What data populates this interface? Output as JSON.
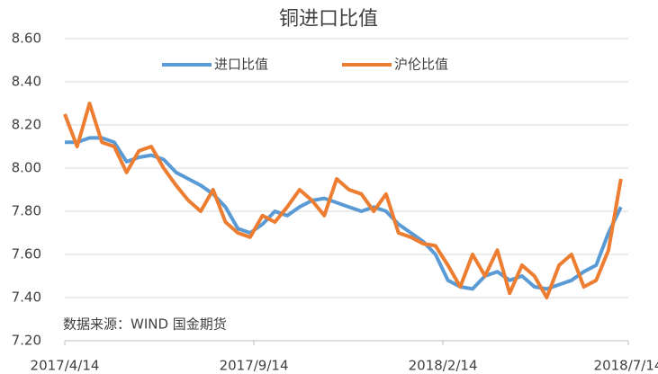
{
  "chart_data": {
    "type": "line",
    "title": "铜进口比值",
    "annotation": "数据来源：WIND 国金期货",
    "x": [
      "2017/4/14",
      "2017/4/24",
      "2017/5/4",
      "2017/5/14",
      "2017/5/24",
      "2017/6/3",
      "2017/6/13",
      "2017/6/23",
      "2017/7/3",
      "2017/7/13",
      "2017/7/23",
      "2017/8/2",
      "2017/8/12",
      "2017/8/22",
      "2017/9/1",
      "2017/9/11",
      "2017/9/21",
      "2017/10/1",
      "2017/10/11",
      "2017/10/21",
      "2017/10/31",
      "2017/11/10",
      "2017/11/20",
      "2017/11/30",
      "2017/12/10",
      "2017/12/20",
      "2017/12/30",
      "2018/1/9",
      "2018/1/19",
      "2018/1/29",
      "2018/2/8",
      "2018/2/18",
      "2018/2/28",
      "2018/3/10",
      "2018/3/20",
      "2018/3/30",
      "2018/4/9",
      "2018/4/19",
      "2018/4/29",
      "2018/5/9",
      "2018/5/19",
      "2018/5/29",
      "2018/6/8",
      "2018/6/18",
      "2018/6/28",
      "2018/7/8"
    ],
    "series": [
      {
        "name": "进口比值",
        "color": "#5b9bd5",
        "values": [
          8.12,
          8.12,
          8.14,
          8.14,
          8.12,
          8.03,
          8.05,
          8.06,
          8.04,
          7.98,
          7.95,
          7.92,
          7.88,
          7.82,
          7.72,
          7.7,
          7.74,
          7.8,
          7.78,
          7.82,
          7.85,
          7.86,
          7.84,
          7.82,
          7.8,
          7.82,
          7.8,
          7.74,
          7.7,
          7.66,
          7.6,
          7.48,
          7.45,
          7.44,
          7.5,
          7.52,
          7.48,
          7.5,
          7.45,
          7.44,
          7.46,
          7.48,
          7.52,
          7.55,
          7.7,
          7.82
        ]
      },
      {
        "name": "沪伦比值",
        "color": "#ed7d31",
        "values": [
          8.25,
          8.1,
          8.3,
          8.12,
          8.1,
          7.98,
          8.08,
          8.1,
          8.0,
          7.92,
          7.85,
          7.8,
          7.9,
          7.75,
          7.7,
          7.68,
          7.78,
          7.75,
          7.82,
          7.9,
          7.85,
          7.78,
          7.95,
          7.9,
          7.88,
          7.8,
          7.88,
          7.7,
          7.68,
          7.65,
          7.64,
          7.55,
          7.45,
          7.6,
          7.5,
          7.62,
          7.42,
          7.55,
          7.5,
          7.4,
          7.55,
          7.6,
          7.45,
          7.48,
          7.62,
          7.95
        ]
      }
    ],
    "xlim": [
      "2017/4/14",
      "2018/7/14"
    ],
    "xticks": [
      "2017/4/14",
      "2017/9/14",
      "2018/2/14",
      "2018/7/14"
    ],
    "ylim": [
      7.2,
      8.6
    ],
    "yticks": [
      {
        "value": 7.2,
        "label": "7.20"
      },
      {
        "value": 7.4,
        "label": "7.40"
      },
      {
        "value": 7.6,
        "label": "7.60"
      },
      {
        "value": 7.8,
        "label": "7.80"
      },
      {
        "value": 8.0,
        "label": "8.00"
      },
      {
        "value": 8.2,
        "label": "8.20"
      },
      {
        "value": 8.4,
        "label": "8.40"
      },
      {
        "value": 8.6,
        "label": "8.60"
      }
    ],
    "grid": true,
    "legend": "top"
  }
}
